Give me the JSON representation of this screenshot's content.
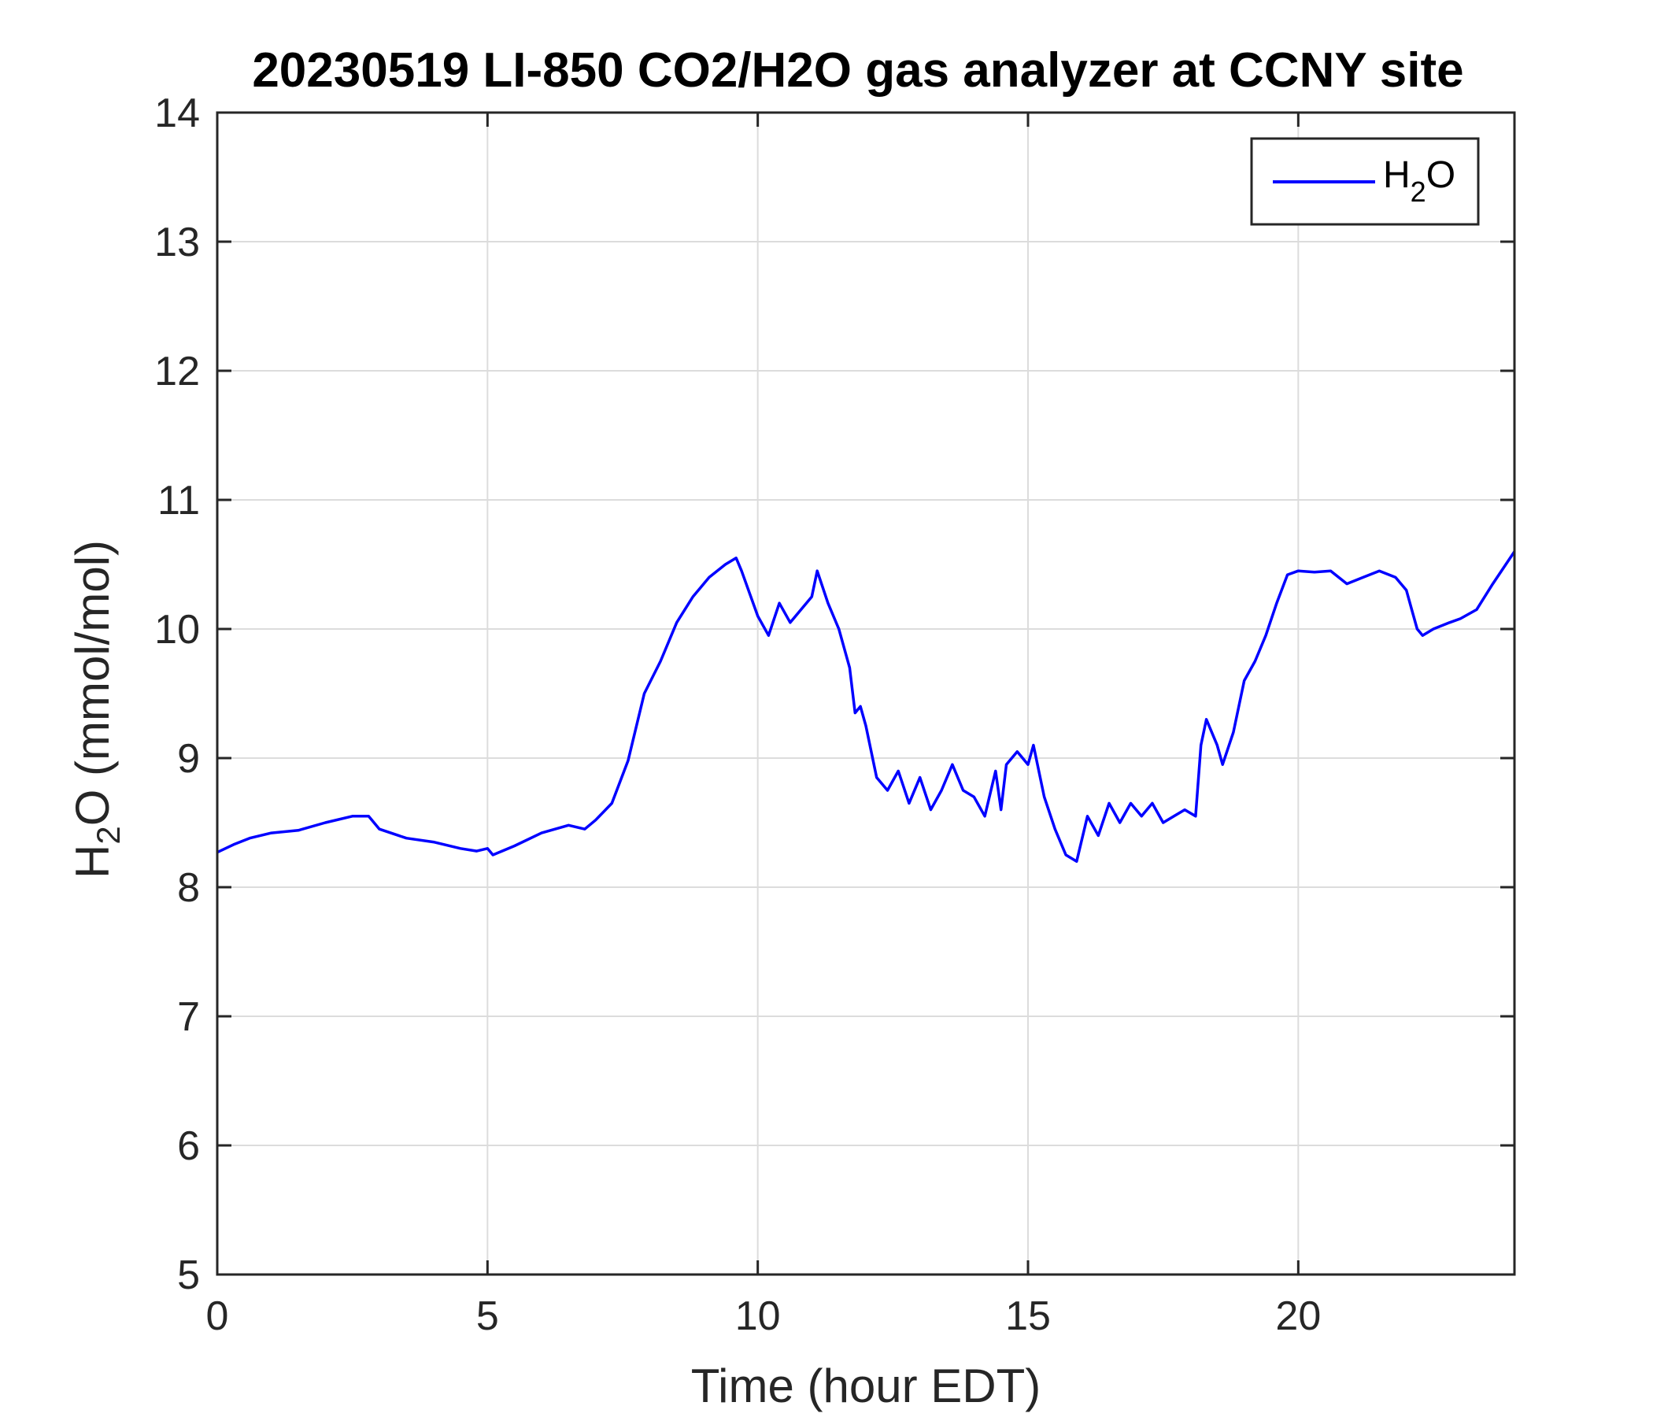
{
  "chart_data": {
    "type": "line",
    "title": "20230519 LI-850 CO2/H2O gas analyzer at CCNY site",
    "xlabel": "Time (hour EDT)",
    "ylabel": {
      "pre": "H",
      "sub": "2",
      "post": "O (mmol/mol)"
    },
    "xlim": [
      0,
      24
    ],
    "ylim": [
      5,
      14
    ],
    "xticks": [
      0,
      5,
      10,
      15,
      20
    ],
    "yticks": [
      5,
      6,
      7,
      8,
      9,
      10,
      11,
      12,
      13,
      14
    ],
    "grid": true,
    "legend": {
      "position": "top-right",
      "entries": [
        {
          "pre": "H",
          "sub": "2",
          "post": "O"
        }
      ]
    },
    "series": [
      {
        "name": "H2O",
        "color": "#0000ff",
        "x": [
          0.0,
          0.3,
          0.6,
          1.0,
          1.5,
          2.0,
          2.5,
          2.8,
          3.0,
          3.5,
          4.0,
          4.5,
          4.8,
          5.0,
          5.1,
          5.5,
          6.0,
          6.5,
          6.8,
          7.0,
          7.3,
          7.6,
          7.9,
          8.2,
          8.5,
          8.8,
          9.1,
          9.4,
          9.6,
          9.7,
          10.0,
          10.2,
          10.4,
          10.6,
          10.8,
          11.0,
          11.1,
          11.3,
          11.5,
          11.7,
          11.8,
          11.9,
          12.0,
          12.2,
          12.4,
          12.6,
          12.8,
          13.0,
          13.2,
          13.4,
          13.6,
          13.8,
          14.0,
          14.2,
          14.4,
          14.5,
          14.6,
          14.8,
          15.0,
          15.1,
          15.3,
          15.5,
          15.7,
          15.9,
          16.1,
          16.3,
          16.5,
          16.7,
          16.9,
          17.1,
          17.3,
          17.5,
          17.7,
          17.9,
          18.1,
          18.2,
          18.3,
          18.5,
          18.6,
          18.8,
          19.0,
          19.2,
          19.4,
          19.6,
          19.8,
          20.0,
          20.3,
          20.6,
          20.9,
          21.2,
          21.5,
          21.8,
          22.0,
          22.1,
          22.2,
          22.3,
          22.5,
          22.8,
          23.0,
          23.3,
          23.6,
          24.0
        ],
        "values": [
          8.27,
          8.33,
          8.38,
          8.42,
          8.44,
          8.5,
          8.55,
          8.55,
          8.45,
          8.38,
          8.35,
          8.3,
          8.28,
          8.3,
          8.25,
          8.32,
          8.42,
          8.48,
          8.45,
          8.52,
          8.65,
          8.98,
          9.5,
          9.75,
          10.05,
          10.25,
          10.4,
          10.5,
          10.55,
          10.45,
          10.1,
          9.95,
          10.2,
          10.05,
          10.15,
          10.25,
          10.45,
          10.2,
          10.0,
          9.7,
          9.35,
          9.4,
          9.25,
          8.85,
          8.75,
          8.9,
          8.65,
          8.85,
          8.6,
          8.75,
          8.95,
          8.75,
          8.7,
          8.55,
          8.9,
          8.6,
          8.95,
          9.05,
          8.95,
          9.1,
          8.7,
          8.45,
          8.25,
          8.2,
          8.55,
          8.4,
          8.65,
          8.5,
          8.65,
          8.55,
          8.65,
          8.5,
          8.55,
          8.6,
          8.55,
          9.1,
          9.3,
          9.1,
          8.95,
          9.2,
          9.6,
          9.75,
          9.95,
          10.2,
          10.42,
          10.45,
          10.44,
          10.45,
          10.35,
          10.4,
          10.45,
          10.4,
          10.3,
          10.15,
          10.0,
          9.95,
          10.0,
          10.05,
          10.08,
          10.15,
          10.35,
          10.6
        ]
      }
    ]
  }
}
